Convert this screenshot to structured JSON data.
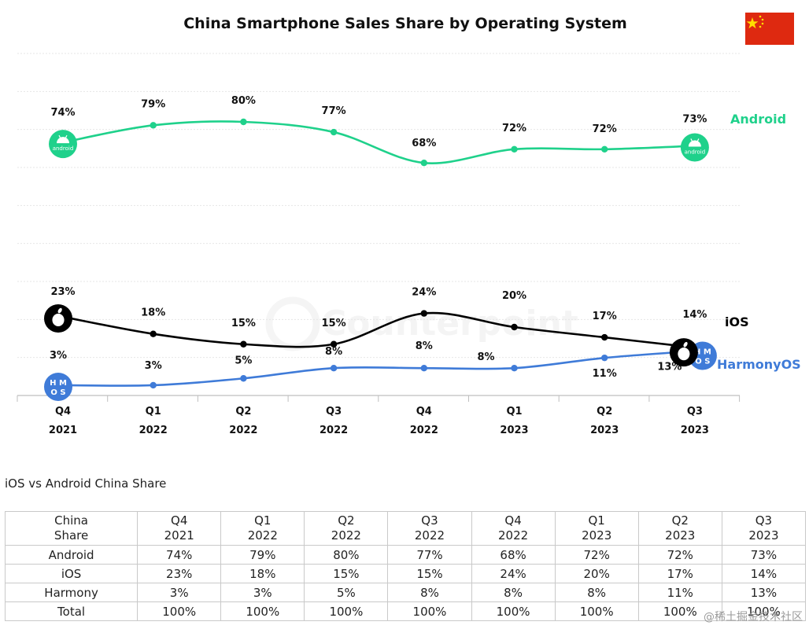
{
  "chart_data": {
    "type": "line",
    "title": "China Smartphone Sales Share by Operating System",
    "categories": [
      "Q4 2021",
      "Q1 2022",
      "Q2 2022",
      "Q3 2022",
      "Q4 2022",
      "Q1 2023",
      "Q2 2023",
      "Q3 2023"
    ],
    "tick_labels": [
      {
        "quarter": "Q4",
        "year": "2021"
      },
      {
        "quarter": "Q1",
        "year": "2022"
      },
      {
        "quarter": "Q2",
        "year": "2022"
      },
      {
        "quarter": "Q3",
        "year": "2022"
      },
      {
        "quarter": "Q4",
        "year": "2022"
      },
      {
        "quarter": "Q1",
        "year": "2023"
      },
      {
        "quarter": "Q2",
        "year": "2023"
      },
      {
        "quarter": "Q3",
        "year": "2023"
      }
    ],
    "series": [
      {
        "name": "Android",
        "color": "#1fd18b",
        "values": [
          74,
          79,
          80,
          77,
          68,
          72,
          72,
          73
        ],
        "labels": [
          "74%",
          "79%",
          "80%",
          "77%",
          "68%",
          "72%",
          "72%",
          "73%"
        ]
      },
      {
        "name": "iOS",
        "color": "#000000",
        "values": [
          23,
          18,
          15,
          15,
          24,
          20,
          17,
          14
        ],
        "labels": [
          "23%",
          "18%",
          "15%",
          "15%",
          "24%",
          "20%",
          "17%",
          "14%"
        ]
      },
      {
        "name": "HarmonyOS",
        "color": "#3f7bd8",
        "values": [
          3,
          3,
          5,
          8,
          8,
          8,
          11,
          13
        ],
        "labels": [
          "3%",
          "3%",
          "5%",
          "8%",
          "8%",
          "8%",
          "11%",
          "13%"
        ]
      }
    ],
    "ylim": [
      0,
      100
    ],
    "grid": true,
    "legend": "right-of-lines",
    "android_badge_text": "android",
    "harmony_badge_top": "H M",
    "harmony_badge_bottom": "O S",
    "watermark": "Counterpoint",
    "flag": "china-flag"
  },
  "table": {
    "caption": "iOS vs Android China Share",
    "corner_header": [
      "China",
      "Share"
    ],
    "columns": [
      [
        "Q4",
        "2021"
      ],
      [
        "Q1",
        "2022"
      ],
      [
        "Q2",
        "2022"
      ],
      [
        "Q3",
        "2022"
      ],
      [
        "Q4",
        "2022"
      ],
      [
        "Q1",
        "2023"
      ],
      [
        "Q2",
        "2023"
      ],
      [
        "Q3",
        "2023"
      ]
    ],
    "rows": [
      {
        "label": "Android",
        "cells": [
          "74%",
          "79%",
          "80%",
          "77%",
          "68%",
          "72%",
          "72%",
          "73%"
        ]
      },
      {
        "label": "iOS",
        "cells": [
          "23%",
          "18%",
          "15%",
          "15%",
          "24%",
          "20%",
          "17%",
          "14%"
        ]
      },
      {
        "label": "Harmony",
        "cells": [
          "3%",
          "3%",
          "5%",
          "8%",
          "8%",
          "8%",
          "11%",
          "13%"
        ]
      },
      {
        "label": "Total",
        "cells": [
          "100%",
          "100%",
          "100%",
          "100%",
          "100%",
          "100%",
          "100%",
          "100%"
        ]
      }
    ]
  },
  "footer": {
    "watermark": "@稀土掘金技术社区"
  }
}
